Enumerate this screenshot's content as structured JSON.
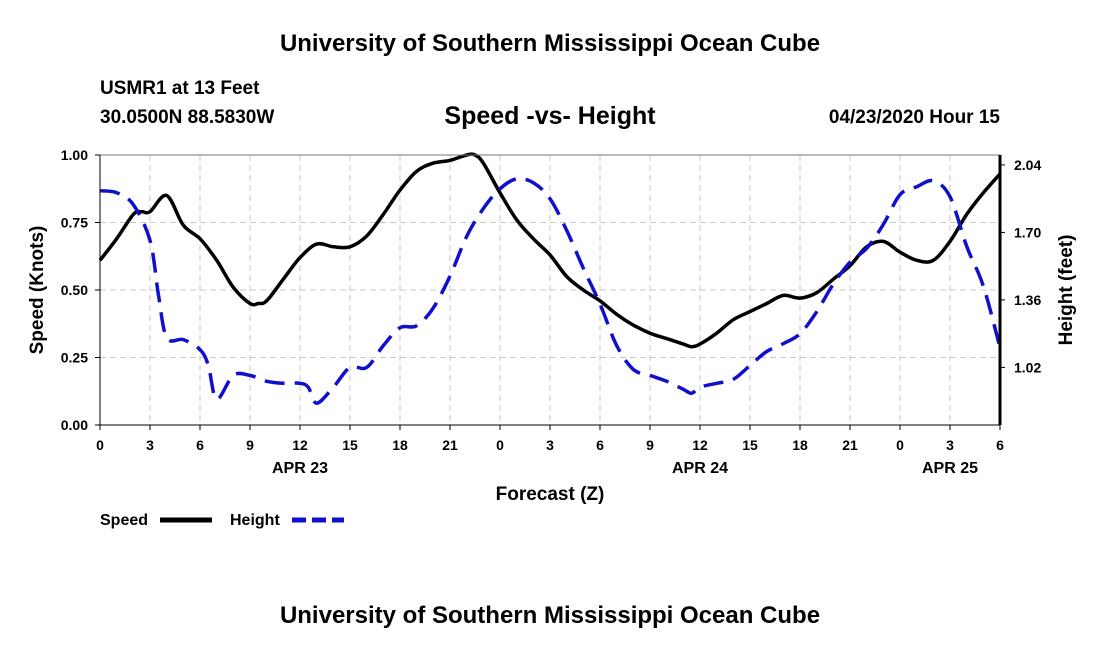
{
  "header": {
    "title": "University of Southern Mississippi Ocean Cube",
    "station": "USMR1 at 13 Feet",
    "coords": "30.0500N 88.5830W",
    "datetime": "04/23/2020 Hour 15",
    "footer_title": "University of Southern Mississippi Ocean Cube"
  },
  "chart_data": {
    "type": "line",
    "title": "Speed -vs- Height",
    "xlabel": "Forecast (Z)",
    "ylabel_left": "Speed (Knots)",
    "ylabel_right": "Height (feet)",
    "xlim": [
      0,
      54
    ],
    "ylim_left": [
      0,
      1.0
    ],
    "ylim_right": [
      0.73,
      2.09
    ],
    "x_ticks": [
      0,
      3,
      6,
      9,
      12,
      15,
      18,
      21,
      24,
      27,
      30,
      33,
      36,
      39,
      42,
      45,
      48,
      51,
      54
    ],
    "x_tick_labels": [
      "0",
      "3",
      "6",
      "9",
      "12",
      "15",
      "18",
      "21",
      "0",
      "3",
      "6",
      "9",
      "12",
      "15",
      "18",
      "21",
      "0",
      "3",
      "6"
    ],
    "date_labels": [
      {
        "x": 12,
        "label": "APR 23"
      },
      {
        "x": 36,
        "label": "APR 24"
      },
      {
        "x": 51,
        "label": "APR 25"
      }
    ],
    "left_ticks": [
      0.0,
      0.25,
      0.5,
      0.75,
      1.0
    ],
    "left_tick_labels": [
      "0.00",
      "0.25",
      "0.50",
      "0.75",
      "1.00"
    ],
    "right_ticks": [
      1.02,
      1.36,
      1.7,
      2.04
    ],
    "right_tick_labels": [
      "1.02",
      "1.36",
      "1.70",
      "2.04"
    ],
    "grid": true,
    "legend_position": "bottom-left",
    "colors": {
      "speed": "#000000",
      "height": "#1010cc",
      "grid": "#c8c8c8"
    },
    "series": [
      {
        "name": "Speed",
        "axis": "left",
        "style": "solid",
        "x": [
          0,
          1,
          2,
          2.5,
          3,
          4,
          5,
          6,
          7,
          8,
          9,
          9.5,
          10,
          11,
          12,
          13,
          14,
          15,
          16,
          17,
          18,
          19,
          20,
          21,
          22,
          22.5,
          23,
          24,
          25,
          26,
          27,
          28,
          29,
          30,
          31,
          32,
          33,
          34,
          35,
          35.5,
          36,
          37,
          38,
          39,
          40,
          41,
          42,
          43,
          44,
          45,
          46,
          47,
          48,
          49,
          50,
          51,
          52,
          53,
          54
        ],
        "values": [
          0.61,
          0.69,
          0.78,
          0.79,
          0.79,
          0.85,
          0.74,
          0.69,
          0.61,
          0.51,
          0.45,
          0.45,
          0.46,
          0.54,
          0.62,
          0.67,
          0.66,
          0.66,
          0.7,
          0.78,
          0.87,
          0.94,
          0.97,
          0.98,
          1.0,
          1.0,
          0.97,
          0.86,
          0.76,
          0.69,
          0.63,
          0.55,
          0.5,
          0.46,
          0.41,
          0.37,
          0.34,
          0.32,
          0.3,
          0.29,
          0.3,
          0.34,
          0.39,
          0.42,
          0.45,
          0.48,
          0.47,
          0.49,
          0.54,
          0.59,
          0.66,
          0.68,
          0.64,
          0.61,
          0.61,
          0.68,
          0.78,
          0.86,
          0.93
        ]
      },
      {
        "name": "Height",
        "axis": "right",
        "style": "dashed",
        "x": [
          0,
          1,
          2,
          3,
          3.5,
          4,
          5,
          6,
          6.5,
          7,
          8,
          9,
          10,
          11,
          12,
          12.5,
          13,
          14,
          15,
          16,
          17,
          18,
          19,
          20,
          21,
          22,
          23,
          24,
          25,
          26,
          27,
          28,
          29,
          30,
          31,
          32,
          33,
          34,
          35,
          35.5,
          36,
          37,
          38,
          39,
          40,
          41,
          42,
          43,
          44,
          45,
          46,
          47,
          48,
          49,
          50,
          51,
          52,
          53,
          54
        ],
        "values": [
          1.91,
          1.9,
          1.84,
          1.66,
          1.39,
          1.17,
          1.16,
          1.11,
          1.03,
          0.86,
          0.98,
          0.98,
          0.95,
          0.94,
          0.94,
          0.92,
          0.84,
          0.92,
          1.02,
          1.02,
          1.13,
          1.22,
          1.23,
          1.32,
          1.48,
          1.68,
          1.82,
          1.92,
          1.97,
          1.95,
          1.87,
          1.71,
          1.52,
          1.34,
          1.13,
          1.01,
          0.98,
          0.95,
          0.91,
          0.89,
          0.92,
          0.94,
          0.96,
          1.03,
          1.1,
          1.14,
          1.19,
          1.3,
          1.44,
          1.55,
          1.62,
          1.74,
          1.89,
          1.93,
          1.96,
          1.88,
          1.63,
          1.43,
          1.12
        ]
      }
    ],
    "legend": [
      {
        "label": "Speed",
        "style": "solid"
      },
      {
        "label": "Height",
        "style": "dashed"
      }
    ]
  }
}
